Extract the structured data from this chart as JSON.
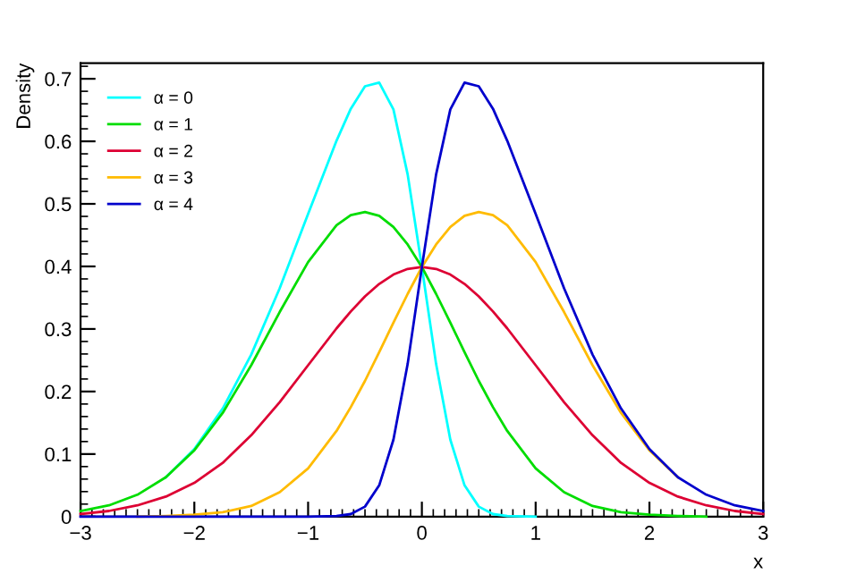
{
  "chart_data": {
    "type": "line",
    "xlabel": "x",
    "ylabel": "Density",
    "x": [
      -3,
      -2.75,
      -2.5,
      -2.25,
      -2,
      -1.75,
      -1.5,
      -1.25,
      -1,
      -0.75,
      -0.625,
      -0.5,
      -0.375,
      -0.25,
      -0.125,
      0,
      0.125,
      0.25,
      0.375,
      0.5,
      0.625,
      0.75,
      1,
      1.25,
      1.5,
      1.75,
      2,
      2.25,
      2.5,
      2.75,
      3
    ],
    "series": [
      {
        "name": "α = 0",
        "color": "#00ffff",
        "values": [
          null,
          null,
          null,
          0.063,
          0.108,
          0.173,
          0.259,
          0.365,
          0.484,
          0.601,
          0.652,
          0.688,
          0.694,
          0.651,
          0.547,
          0.399,
          0.244,
          0.123,
          0.05,
          0.016,
          0.004,
          0.001,
          0,
          null,
          null,
          null,
          null,
          null,
          null,
          null,
          null
        ]
      },
      {
        "name": "α = 1",
        "color": "#00dd00",
        "values": [
          0.009,
          0.018,
          0.035,
          0.063,
          0.106,
          0.166,
          0.242,
          0.327,
          0.407,
          0.466,
          0.482,
          0.487,
          0.481,
          0.463,
          0.435,
          0.399,
          0.356,
          0.31,
          0.263,
          0.217,
          0.175,
          0.137,
          0.077,
          0.039,
          0.017,
          0.007,
          0.003,
          0.001,
          0,
          null,
          null
        ]
      },
      {
        "name": "α = 2",
        "color": "#dd0033",
        "values": [
          0.004,
          0.009,
          0.018,
          0.032,
          0.054,
          0.086,
          0.13,
          0.183,
          0.242,
          0.301,
          0.328,
          0.352,
          0.372,
          0.387,
          0.396,
          0.399,
          0.396,
          0.387,
          0.372,
          0.352,
          0.328,
          0.301,
          0.242,
          0.183,
          0.13,
          0.086,
          0.054,
          0.032,
          0.018,
          0.009,
          0.004
        ]
      },
      {
        "name": "α = 3",
        "color": "#ffbb00",
        "values": [
          null,
          null,
          0,
          0.001,
          0.003,
          0.007,
          0.017,
          0.039,
          0.077,
          0.137,
          0.175,
          0.217,
          0.263,
          0.31,
          0.356,
          0.399,
          0.435,
          0.463,
          0.481,
          0.487,
          0.482,
          0.466,
          0.407,
          0.327,
          0.242,
          0.166,
          0.106,
          0.063,
          null,
          null,
          null
        ]
      },
      {
        "name": "α = 4",
        "color": "#0000cc",
        "values": [
          0,
          0,
          0,
          0,
          0,
          0,
          0,
          0,
          0,
          0.001,
          0.004,
          0.016,
          0.05,
          0.123,
          0.244,
          0.399,
          0.547,
          0.651,
          0.694,
          0.688,
          0.652,
          0.601,
          0.484,
          0.365,
          0.259,
          0.173,
          0.108,
          0.063,
          0.035,
          0.018,
          0.009
        ]
      }
    ],
    "xlim": [
      -3,
      3
    ],
    "xticks": [
      {
        "value": -3,
        "label": "−3"
      },
      {
        "value": -2,
        "label": "−2"
      },
      {
        "value": -1,
        "label": "−1"
      },
      0,
      1,
      2,
      3
    ],
    "ylim": [
      0,
      0.725
    ],
    "yticks": [
      0,
      0.1,
      0.2,
      0.3,
      0.4,
      0.5,
      0.6,
      0.7
    ],
    "legend": "top left",
    "grid": false,
    "marker": "none",
    "line_style": "solid"
  }
}
